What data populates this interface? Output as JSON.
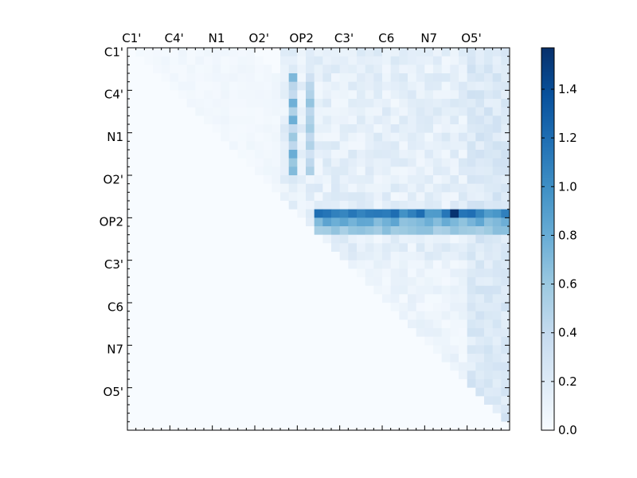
{
  "chart_data": {
    "type": "heatmap",
    "title": "",
    "xlabel": "",
    "ylabel": "",
    "grid_size": 45,
    "tick_labels": [
      "C1'",
      "C4'",
      "N1",
      "O2'",
      "OP2",
      "C3'",
      "C6",
      "N7",
      "O5'"
    ],
    "tick_indices": [
      0,
      5,
      10,
      15,
      20,
      25,
      30,
      35,
      40
    ],
    "matrix_shape": "upper-triangular",
    "colormap": "Blues",
    "colorbar": {
      "min": 0.0,
      "max": 1.57,
      "ticks": [
        "0.0",
        "0.2",
        "0.4",
        "0.6",
        "0.8",
        "1.0",
        "1.2",
        "1.4"
      ],
      "tick_values": [
        0.0,
        0.2,
        0.4,
        0.6,
        0.8,
        1.0,
        1.2,
        1.4
      ],
      "placement": "right"
    },
    "highlights": [
      {
        "row": 19,
        "col_range": [
          22,
          44
        ],
        "approx_value": 1.05,
        "peak_col": 38,
        "peak_value": 1.55
      },
      {
        "row": 20,
        "col_range": [
          22,
          44
        ],
        "approx_value": 0.75
      },
      {
        "row": 21,
        "col_range": [
          22,
          44
        ],
        "approx_value": 0.6
      },
      {
        "col": 19,
        "row_range": [
          3,
          14
        ],
        "approx_value": 0.7
      },
      {
        "col": 21,
        "row_range": [
          3,
          14
        ],
        "approx_value": 0.55
      }
    ],
    "background_value_range": [
      0.0,
      0.35
    ]
  }
}
